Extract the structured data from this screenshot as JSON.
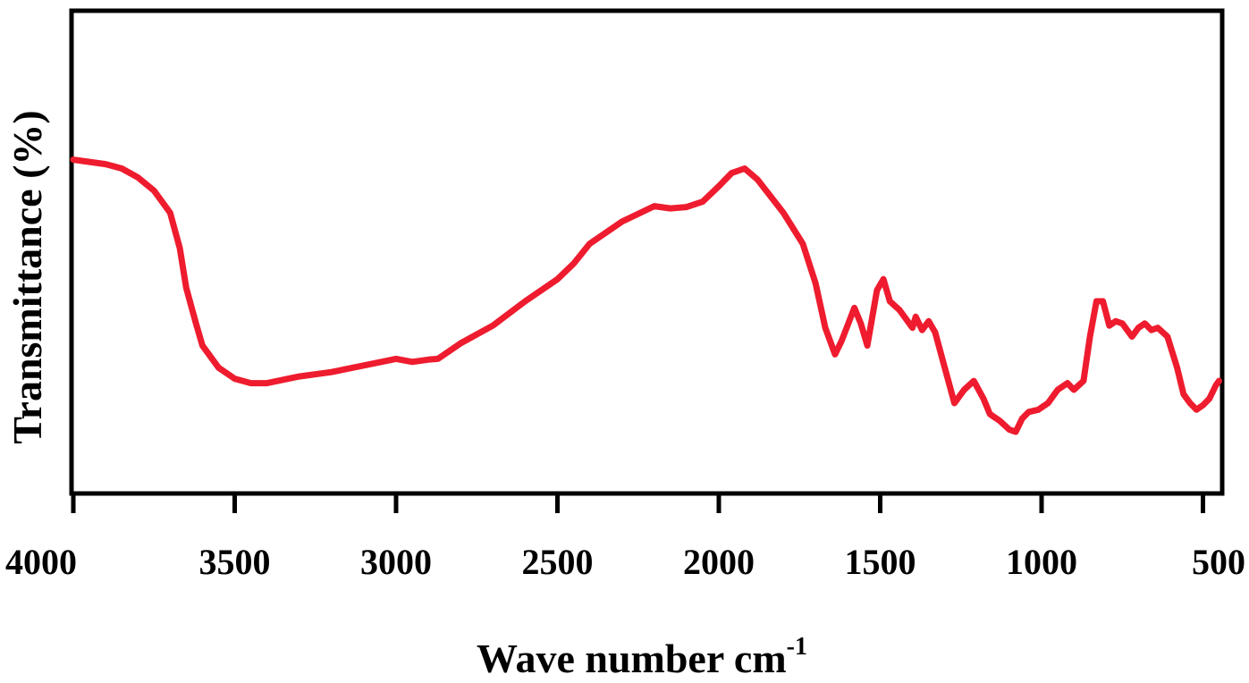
{
  "chart_data": {
    "type": "line",
    "title": "",
    "xlabel": "Wave number cm",
    "xlabel_superscript": "-1",
    "ylabel": "Transmittance (%)",
    "xlim": [
      4000,
      450
    ],
    "ylim": [
      0,
      100
    ],
    "x_reversed": true,
    "y_tick_labels_shown": false,
    "grid": false,
    "x_ticks": [
      4000,
      3500,
      3000,
      2500,
      2000,
      1500,
      1000,
      500
    ],
    "line_color": "#ee1c2e",
    "series": [
      {
        "values": [
          [
            4000,
            72
          ],
          [
            3900,
            71
          ],
          [
            3850,
            70
          ],
          [
            3800,
            68
          ],
          [
            3750,
            65
          ],
          [
            3700,
            60
          ],
          [
            3670,
            52
          ],
          [
            3650,
            43
          ],
          [
            3620,
            35
          ],
          [
            3600,
            30
          ],
          [
            3550,
            25
          ],
          [
            3500,
            22.5
          ],
          [
            3450,
            21.5
          ],
          [
            3400,
            21.5
          ],
          [
            3300,
            23
          ],
          [
            3200,
            24
          ],
          [
            3100,
            25.5
          ],
          [
            3000,
            27
          ],
          [
            2950,
            26.3
          ],
          [
            2900,
            26.8
          ],
          [
            2870,
            27
          ],
          [
            2800,
            30.5
          ],
          [
            2700,
            34.5
          ],
          [
            2600,
            40
          ],
          [
            2500,
            45
          ],
          [
            2450,
            48.5
          ],
          [
            2400,
            53
          ],
          [
            2300,
            58
          ],
          [
            2200,
            61.5
          ],
          [
            2150,
            61
          ],
          [
            2100,
            61.3
          ],
          [
            2050,
            62.5
          ],
          [
            2000,
            66
          ],
          [
            1960,
            69
          ],
          [
            1920,
            70
          ],
          [
            1880,
            67.5
          ],
          [
            1800,
            60
          ],
          [
            1740,
            53
          ],
          [
            1700,
            44
          ],
          [
            1670,
            34
          ],
          [
            1640,
            28
          ],
          [
            1620,
            31
          ],
          [
            1580,
            38.5
          ],
          [
            1560,
            35
          ],
          [
            1540,
            30
          ],
          [
            1510,
            42.5
          ],
          [
            1490,
            45
          ],
          [
            1470,
            40
          ],
          [
            1440,
            38
          ],
          [
            1420,
            36
          ],
          [
            1400,
            34
          ],
          [
            1390,
            36.5
          ],
          [
            1370,
            33.5
          ],
          [
            1350,
            35.5
          ],
          [
            1330,
            33
          ],
          [
            1300,
            25
          ],
          [
            1270,
            17
          ],
          [
            1240,
            20
          ],
          [
            1210,
            22
          ],
          [
            1180,
            18
          ],
          [
            1160,
            14.5
          ],
          [
            1130,
            13
          ],
          [
            1100,
            11
          ],
          [
            1080,
            10.5
          ],
          [
            1060,
            13.5
          ],
          [
            1040,
            15
          ],
          [
            1010,
            15.5
          ],
          [
            980,
            17
          ],
          [
            950,
            20
          ],
          [
            920,
            21.5
          ],
          [
            900,
            20
          ],
          [
            870,
            22
          ],
          [
            850,
            32
          ],
          [
            830,
            40
          ],
          [
            810,
            40
          ],
          [
            790,
            34.5
          ],
          [
            770,
            35.5
          ],
          [
            750,
            35
          ],
          [
            720,
            32
          ],
          [
            700,
            34
          ],
          [
            680,
            35
          ],
          [
            660,
            33.5
          ],
          [
            640,
            34
          ],
          [
            610,
            32
          ],
          [
            580,
            25
          ],
          [
            560,
            19
          ],
          [
            540,
            17
          ],
          [
            520,
            15.5
          ],
          [
            500,
            16.5
          ],
          [
            480,
            18
          ],
          [
            460,
            21
          ],
          [
            450,
            22
          ]
        ]
      }
    ]
  }
}
